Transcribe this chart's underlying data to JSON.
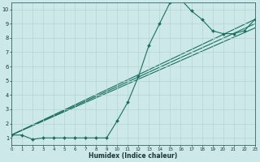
{
  "xlabel": "Humidex (Indice chaleur)",
  "bg_color": "#cce8e8",
  "grid_color": "#b8d4d0",
  "line_color": "#1a7060",
  "xlim": [
    0,
    23
  ],
  "ylim": [
    0.5,
    10.5
  ],
  "xticks": [
    0,
    1,
    2,
    3,
    4,
    5,
    6,
    7,
    8,
    9,
    10,
    11,
    12,
    13,
    14,
    15,
    16,
    17,
    18,
    19,
    20,
    21,
    22,
    23
  ],
  "yticks": [
    1,
    2,
    3,
    4,
    5,
    6,
    7,
    8,
    9,
    10
  ],
  "curve_x": [
    0,
    1,
    2,
    3,
    4,
    5,
    6,
    7,
    8,
    9,
    10,
    11,
    12,
    13,
    14,
    15,
    16,
    17,
    18,
    19,
    20,
    21,
    22,
    23
  ],
  "curve_y": [
    1.2,
    1.2,
    0.9,
    1.0,
    1.0,
    1.0,
    1.0,
    1.0,
    1.0,
    1.0,
    2.2,
    3.5,
    5.3,
    7.5,
    9.0,
    10.5,
    10.7,
    9.9,
    9.3,
    8.5,
    8.3,
    8.3,
    8.5,
    9.3
  ],
  "line1_x": [
    0,
    23
  ],
  "line1_y": [
    1.2,
    8.7
  ],
  "line2_x": [
    0,
    23
  ],
  "line2_y": [
    1.2,
    9.0
  ],
  "line3_x": [
    0,
    23
  ],
  "line3_y": [
    1.2,
    9.3
  ],
  "figsize": [
    3.2,
    2.0
  ],
  "dpi": 100
}
